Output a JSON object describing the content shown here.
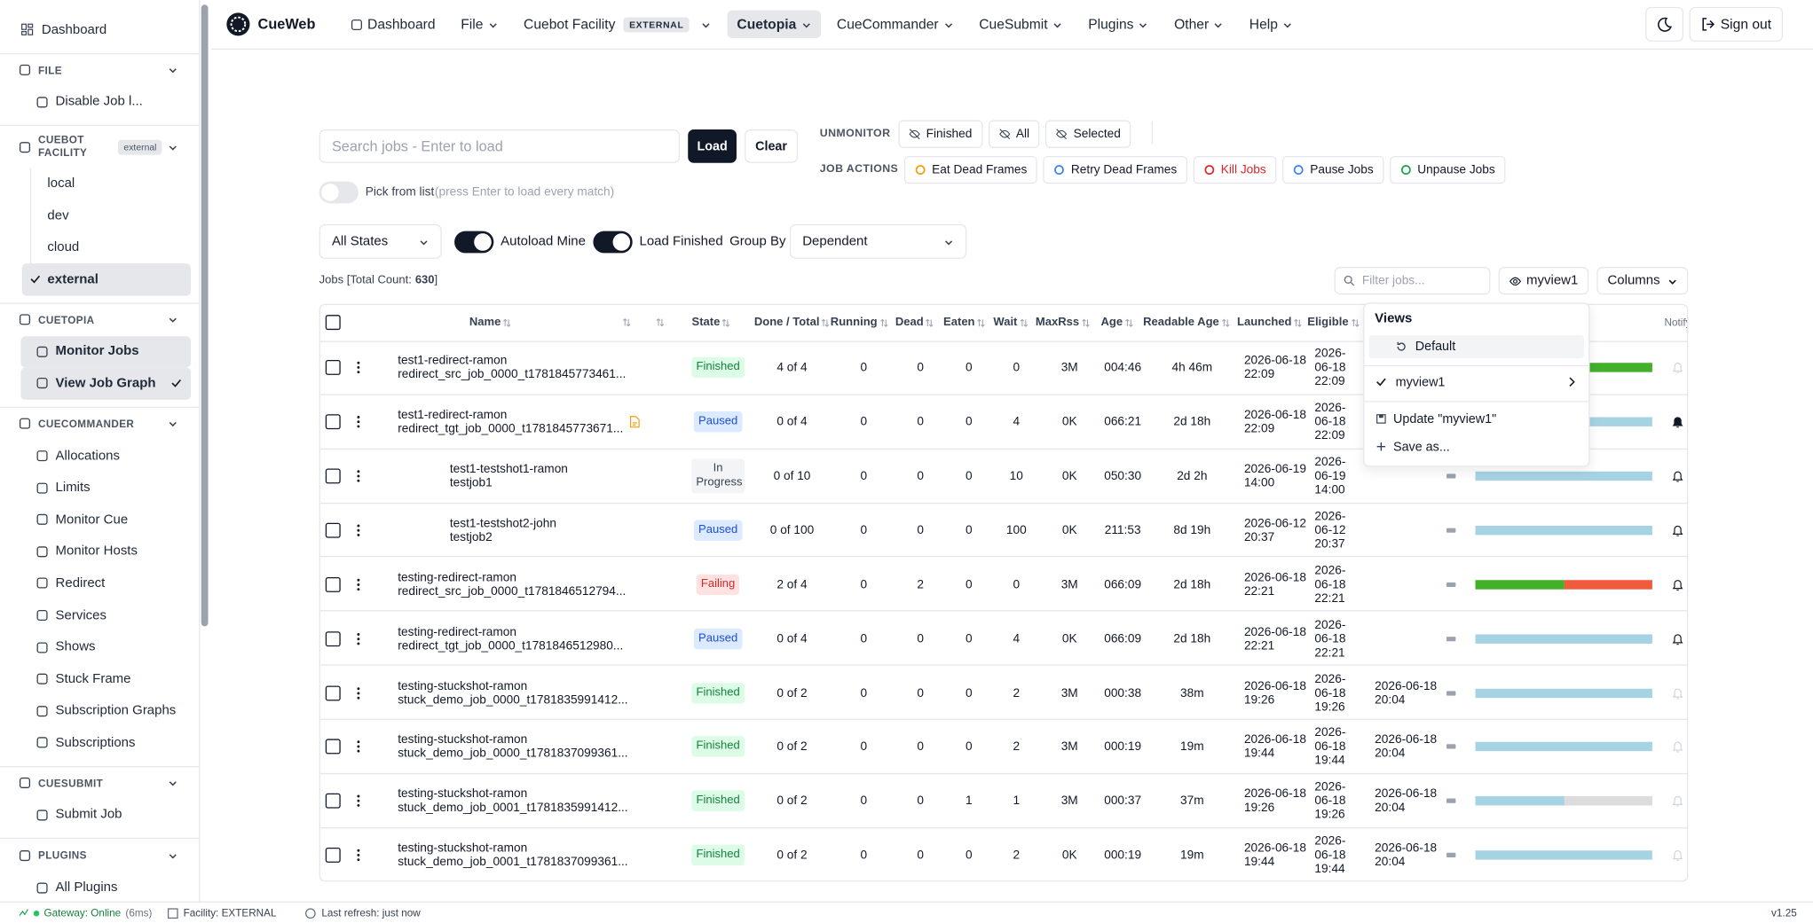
{
  "sidebar": {
    "dashboard": "Dashboard",
    "sections": [
      {
        "title": "FILE",
        "items": [
          {
            "label": "Disable Job l..."
          }
        ]
      },
      {
        "title": "CUEBOT FACILITY",
        "badge": "external",
        "nested": true,
        "items": [
          {
            "label": "local"
          },
          {
            "label": "dev"
          },
          {
            "label": "cloud"
          },
          {
            "label": "external",
            "active": true
          }
        ]
      },
      {
        "title": "CUETOPIA",
        "items": [
          {
            "label": "Monitor Jobs",
            "active": true
          },
          {
            "label": "View Job Graph",
            "active": true,
            "checked": true
          }
        ]
      },
      {
        "title": "CUECOMMANDER",
        "items": [
          {
            "label": "Allocations"
          },
          {
            "label": "Limits"
          },
          {
            "label": "Monitor Cue"
          },
          {
            "label": "Monitor Hosts"
          },
          {
            "label": "Redirect"
          },
          {
            "label": "Services"
          },
          {
            "label": "Shows"
          },
          {
            "label": "Stuck Frame"
          },
          {
            "label": "Subscription Graphs"
          },
          {
            "label": "Subscriptions"
          }
        ]
      },
      {
        "title": "CUESUBMIT",
        "items": [
          {
            "label": "Submit Job"
          }
        ]
      },
      {
        "title": "PLUGINS",
        "items": [
          {
            "label": "All Plugins"
          }
        ]
      }
    ]
  },
  "topnav": {
    "brand": "CueWeb",
    "items": [
      {
        "label": "Dashboard",
        "icon": true
      },
      {
        "label": "File",
        "menu": true
      },
      {
        "label": "Cuebot Facility",
        "badge": "EXTERNAL",
        "menu": true
      },
      {
        "label": "Cuetopia",
        "menu": true,
        "active": true
      },
      {
        "label": "CueCommander",
        "menu": true
      },
      {
        "label": "CueSubmit",
        "menu": true
      },
      {
        "label": "Plugins",
        "menu": true
      },
      {
        "label": "Other",
        "menu": true
      },
      {
        "label": "Help",
        "menu": true
      }
    ],
    "sign_out": "Sign out"
  },
  "toolbar": {
    "search_placeholder": "Search jobs - Enter to load",
    "load": "Load",
    "clear": "Clear",
    "pick_from_list": "Pick from list",
    "pick_hint": "(press Enter to load every match)",
    "unmonitor": {
      "label": "UNMONITOR",
      "buttons": [
        {
          "label": "Finished"
        },
        {
          "label": "All"
        },
        {
          "label": "Selected"
        }
      ]
    },
    "job_actions": {
      "label": "JOB ACTIONS",
      "buttons": [
        {
          "label": "Eat Dead Frames",
          "icon_color": "#f59e0b"
        },
        {
          "label": "Retry Dead Frames",
          "icon_color": "#3b82f6"
        },
        {
          "label": "Kill Jobs",
          "icon_color": "#dc2626",
          "color": "#dc2626"
        },
        {
          "label": "Pause Jobs",
          "icon_color": "#3b82f6"
        },
        {
          "label": "Unpause Jobs",
          "icon_color": "#16a34a"
        }
      ]
    },
    "state_filter": "All States",
    "autoload_mine": "Autoload Mine",
    "load_finished": "Load Finished",
    "group_by": "Group By",
    "group_by_value": "Dependent",
    "jobs_count_prefix": "Jobs [Total Count:",
    "jobs_count": 630,
    "jobs_count_suffix": "]",
    "filter_placeholder": "Filter jobs...",
    "view_button": "myview1",
    "columns_button": "Columns"
  },
  "table": {
    "columns": [
      "Name",
      "State",
      "Done / Total",
      "Running",
      "Dead",
      "Eaten",
      "Wait",
      "MaxRss",
      "Age",
      "Readable Age",
      "Launched",
      "Eligible",
      "Notify"
    ],
    "rows": [
      {
        "name": [
          "test1-redirect-ramon",
          "redirect_src_job_0000_t1781845773461..."
        ],
        "state": "Finished",
        "done_total": "4 of 4",
        "succeeded": 4,
        "running": 0,
        "dead": 0,
        "eaten": 0,
        "wait": 0,
        "maxrss": "3M",
        "age": "004:46",
        "readable_age": "4h 46m",
        "launched": "2026-06-18 22:09",
        "eligible": "2026-06-18 22:09",
        "notify": "muted"
      },
      {
        "name": [
          "test1-redirect-ramon",
          "redirect_tgt_job_0000_t1781845773671..."
        ],
        "file_icon": true,
        "state": "Paused",
        "done_total": "0 of 4",
        "succeeded": 0,
        "running": 0,
        "dead": 0,
        "eaten": 0,
        "wait": 4,
        "maxrss": "0K",
        "age": "066:21",
        "readable_age": "2d 18h",
        "launched": "2026-06-18 22:09",
        "eligible": "2026-06-18 22:09",
        "notify": "active"
      },
      {
        "name": [
          "test1-testshot1-ramon",
          "testjob1"
        ],
        "level": 1,
        "state": "In Progress",
        "done_total": "0 of 10",
        "succeeded": 0,
        "running": 0,
        "dead": 0,
        "eaten": 0,
        "wait": 10,
        "maxrss": "0K",
        "age": "050:30",
        "readable_age": "2d 2h",
        "launched": "2026-06-19 14:00",
        "eligible": "2026-06-19 14:00",
        "notify": "on"
      },
      {
        "name": [
          "test1-testshot2-john",
          "testjob2"
        ],
        "level": 1,
        "state": "Paused",
        "done_total": "0 of 100",
        "succeeded": 0,
        "running": 0,
        "dead": 0,
        "eaten": 0,
        "wait": 100,
        "maxrss": "0K",
        "age": "211:53",
        "readable_age": "8d 19h",
        "launched": "2026-06-12 20:37",
        "eligible": "2026-06-12 20:37",
        "notify": "on"
      },
      {
        "name": [
          "testing-redirect-ramon",
          "redirect_src_job_0000_t1781846512794..."
        ],
        "state": "Failing",
        "done_total": "2 of 4",
        "succeeded": 2,
        "running": 0,
        "dead": 2,
        "eaten": 0,
        "wait": 0,
        "maxrss": "3M",
        "age": "066:09",
        "readable_age": "2d 18h",
        "launched": "2026-06-18 22:21",
        "eligible": "2026-06-18 22:21",
        "notify": "on"
      },
      {
        "name": [
          "testing-redirect-ramon",
          "redirect_tgt_job_0000_t1781846512980..."
        ],
        "state": "Paused",
        "done_total": "0 of 4",
        "succeeded": 0,
        "running": 0,
        "dead": 0,
        "eaten": 0,
        "wait": 4,
        "maxrss": "0K",
        "age": "066:09",
        "readable_age": "2d 18h",
        "launched": "2026-06-18 22:21",
        "eligible": "2026-06-18 22:21",
        "notify": "on"
      },
      {
        "name": [
          "testing-stuckshot-ramon",
          "stuck_demo_job_0000_t1781835991412..."
        ],
        "state": "Finished",
        "done_total": "0 of 2",
        "succeeded": 0,
        "running": 0,
        "dead": 0,
        "eaten": 0,
        "wait": 2,
        "maxrss": "3M",
        "age": "000:38",
        "readable_age": "38m",
        "launched": "2026-06-18 19:26",
        "eligible": "2026-06-18 19:26",
        "finished": "2026-06-18 20:04",
        "notify": "muted"
      },
      {
        "name": [
          "testing-stuckshot-ramon",
          "stuck_demo_job_0000_t1781837099361..."
        ],
        "state": "Finished",
        "done_total": "0 of 2",
        "succeeded": 0,
        "running": 0,
        "dead": 0,
        "eaten": 0,
        "wait": 2,
        "maxrss": "3M",
        "age": "000:19",
        "readable_age": "19m",
        "launched": "2026-06-18 19:44",
        "eligible": "2026-06-18 19:44",
        "finished": "2026-06-18 20:04",
        "notify": "muted"
      },
      {
        "name": [
          "testing-stuckshot-ramon",
          "stuck_demo_job_0001_t1781835991412..."
        ],
        "state": "Finished",
        "done_total": "0 of 2",
        "succeeded": 0,
        "running": 0,
        "dead": 0,
        "eaten": 1,
        "wait": 1,
        "maxrss": "3M",
        "age": "000:37",
        "readable_age": "37m",
        "launched": "2026-06-18 19:26",
        "eligible": "2026-06-18 19:26",
        "finished": "2026-06-18 20:04",
        "notify": "muted"
      },
      {
        "name": [
          "testing-stuckshot-ramon",
          "stuck_demo_job_0001_t1781837099361..."
        ],
        "state": "Finished",
        "done_total": "0 of 2",
        "succeeded": 0,
        "running": 0,
        "dead": 0,
        "eaten": 0,
        "wait": 2,
        "maxrss": "0K",
        "age": "000:19",
        "readable_age": "19m",
        "launched": "2026-06-18 19:44",
        "eligible": "2026-06-18 19:44",
        "finished": "2026-06-18 20:04",
        "notify": "muted"
      }
    ]
  },
  "views_menu": {
    "title": "Views",
    "default": "Default",
    "current": "myview1",
    "update": "Update \"myview1\"",
    "save_as": "Save as..."
  },
  "status_bar": {
    "gateway": "Gateway: Online",
    "latency": "(6ms)",
    "facility": "Facility: EXTERNAL",
    "refresh": "Last refresh: just now",
    "version": "v1.25"
  }
}
